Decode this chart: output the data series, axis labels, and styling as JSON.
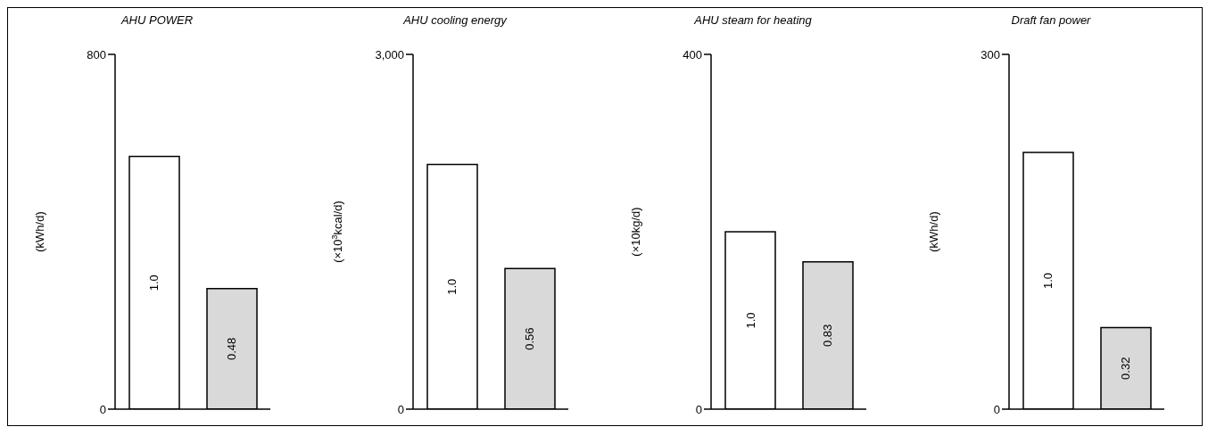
{
  "chart_data": [
    {
      "type": "bar",
      "title": "AHU POWER",
      "ylabel": "(kWh/d)",
      "categories": [
        null,
        null
      ],
      "values": [
        570,
        272
      ],
      "colors": [
        "#ffffff",
        "#d9d9d9"
      ],
      "annotations": [
        "1.0",
        "0.48"
      ],
      "ylim": [
        0,
        800
      ],
      "yticks": [
        0,
        800
      ],
      "grid": false,
      "legend": false
    },
    {
      "type": "bar",
      "title": "AHU cooling energy",
      "ylabel": "(×10$^{3}$kcal/d)",
      "categories": [
        null,
        null
      ],
      "values": [
        2070,
        1190
      ],
      "colors": [
        "#ffffff",
        "#d9d9d9"
      ],
      "annotations": [
        "1.0",
        "0.56"
      ],
      "ylim": [
        0,
        3000
      ],
      "yticks": [
        0,
        {
          "value": 3000,
          "label": "3,000"
        }
      ],
      "grid": false,
      "legend": false
    },
    {
      "type": "bar",
      "title": "AHU steam for heating",
      "ylabel": "(×10kg/d)",
      "categories": [
        null,
        null
      ],
      "values": [
        200,
        166
      ],
      "colors": [
        "#ffffff",
        "#d9d9d9"
      ],
      "annotations": [
        "1.0",
        "0.83"
      ],
      "ylim": [
        0,
        400
      ],
      "yticks": [
        0,
        400
      ],
      "grid": false,
      "legend": false
    },
    {
      "type": "bar",
      "title": "Draft fan power",
      "ylabel": "(kWh/d)",
      "categories": [
        null,
        null
      ],
      "values": [
        217,
        69
      ],
      "colors": [
        "#ffffff",
        "#d9d9d9"
      ],
      "annotations": [
        "1.0",
        "0.32"
      ],
      "ylim": [
        0,
        300
      ],
      "yticks": [
        0,
        300
      ],
      "grid": false,
      "legend": false
    }
  ]
}
